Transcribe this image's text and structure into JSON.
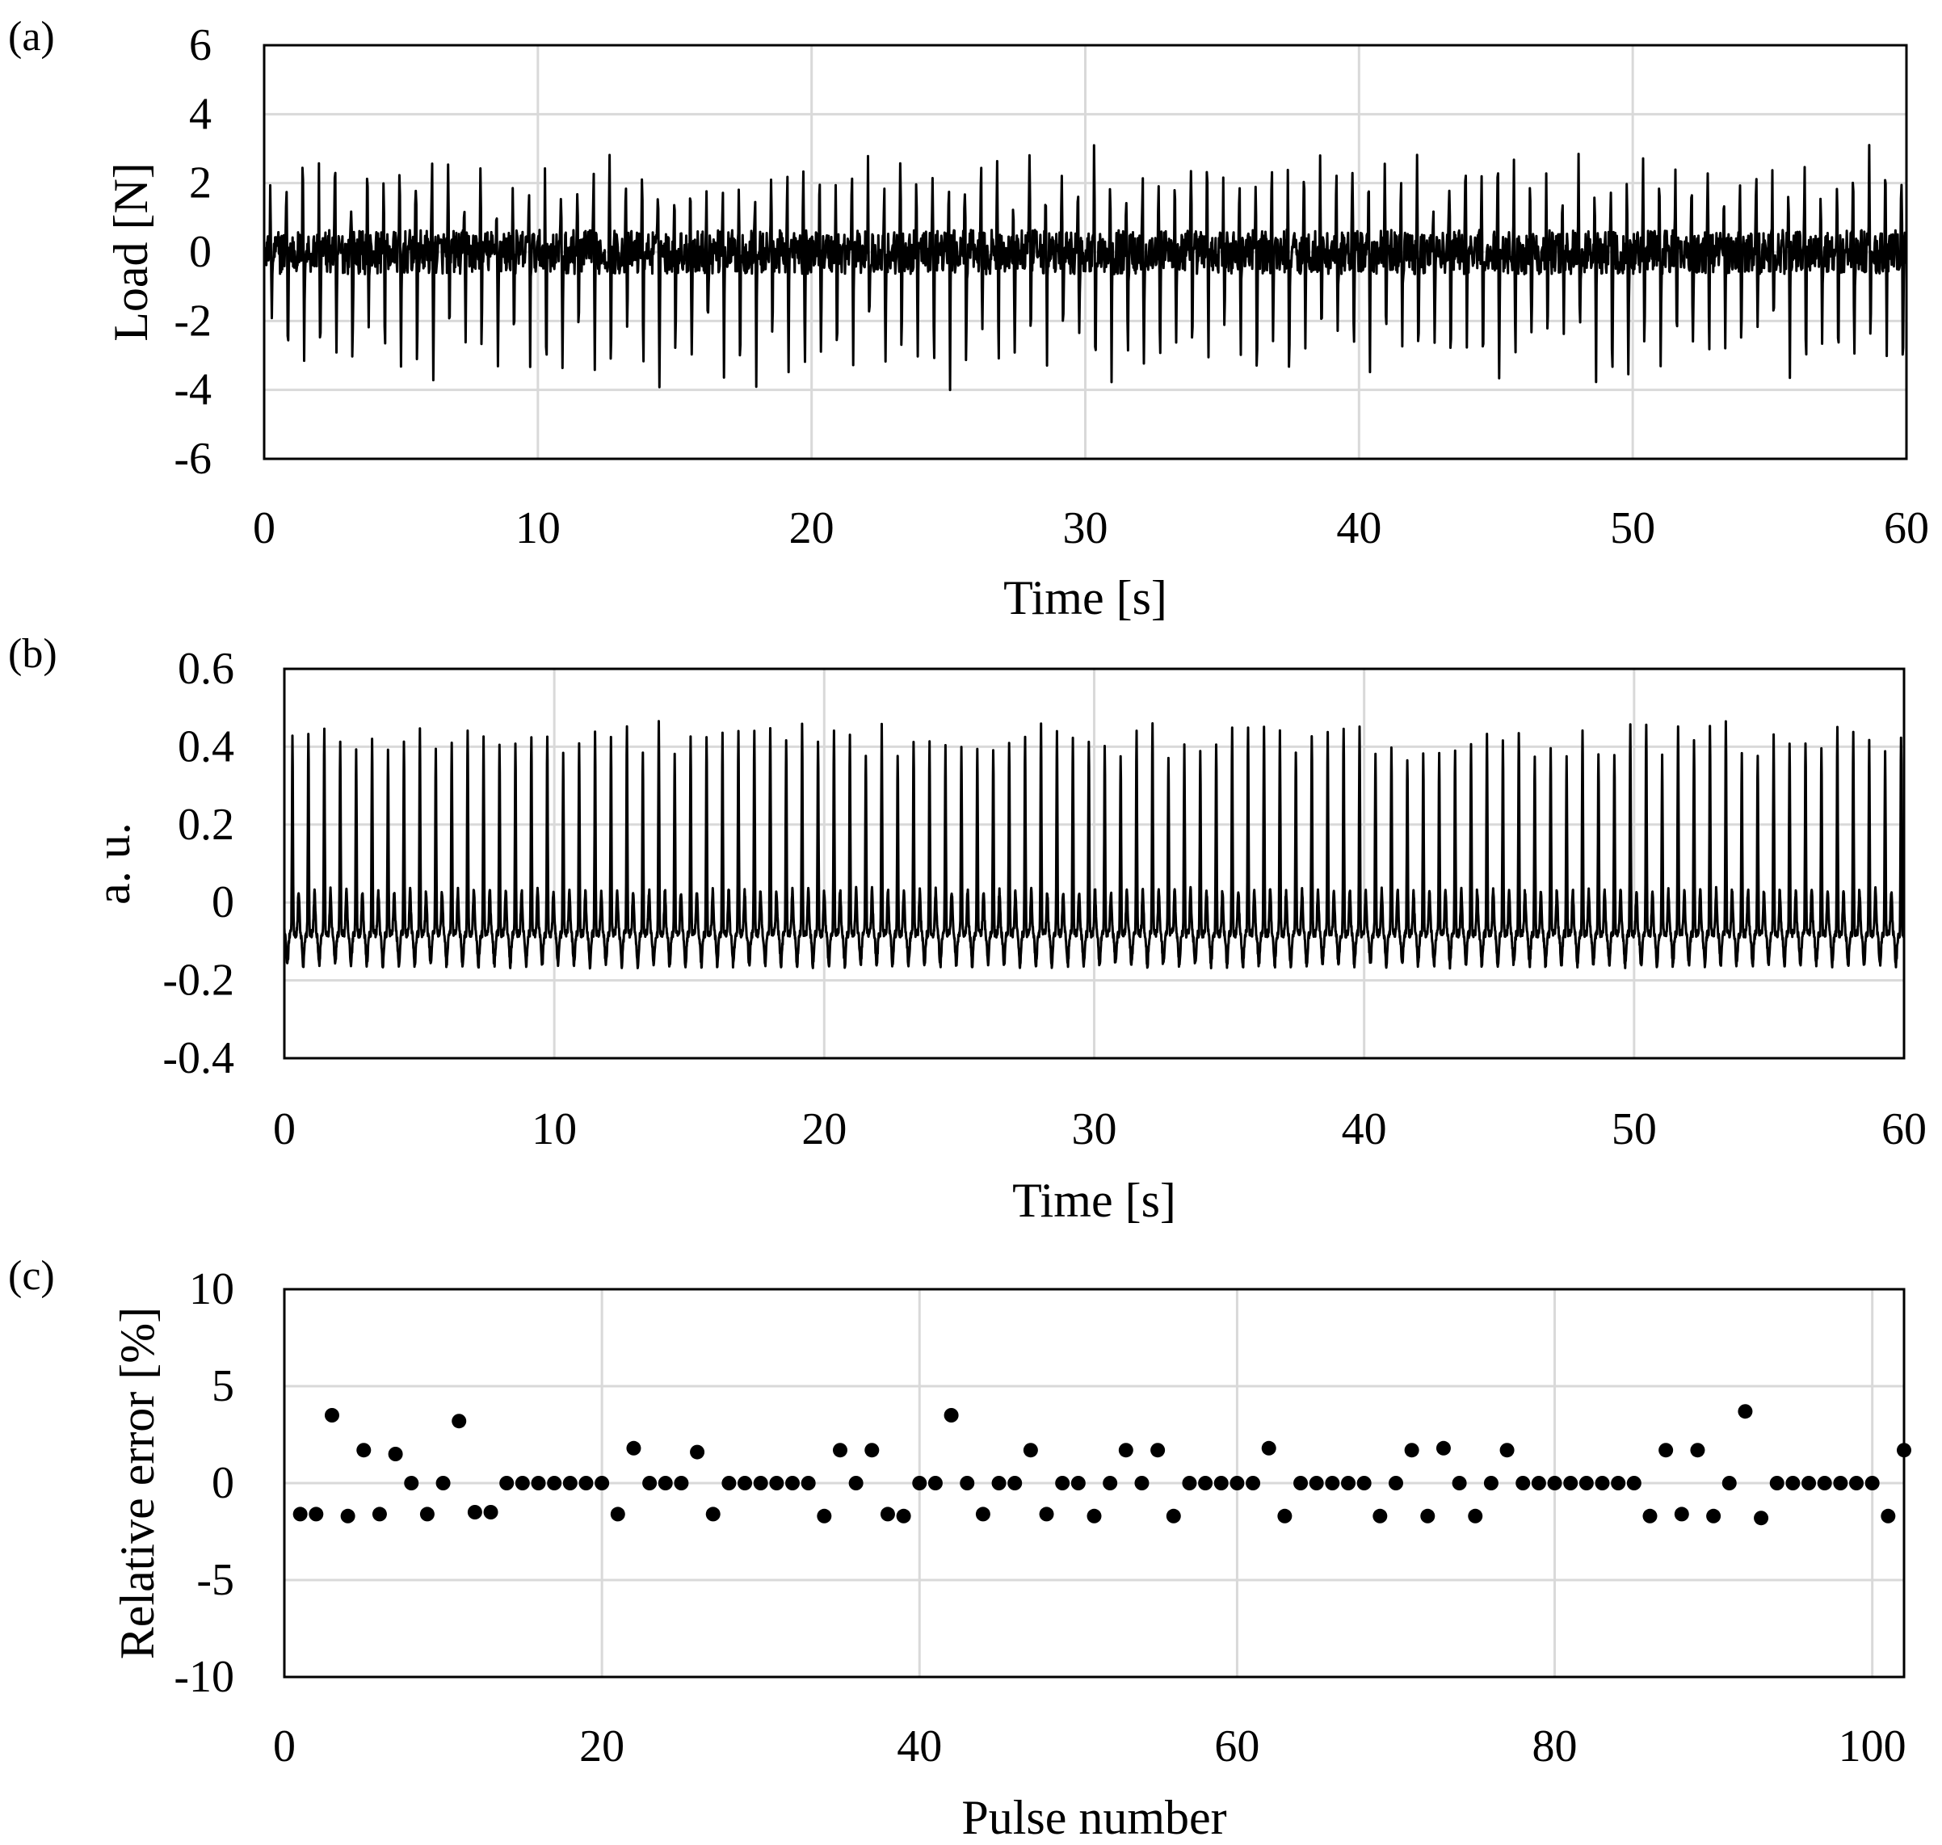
{
  "chart_data": [
    {
      "panel": "(a)",
      "type": "line",
      "xlabel": "Time [s]",
      "ylabel": "Load [N]",
      "xlim": [
        0,
        60
      ],
      "ylim": [
        -6,
        6
      ],
      "xticks": [
        0,
        10,
        20,
        30,
        40,
        50,
        60
      ],
      "yticks": [
        6,
        4,
        2,
        0,
        -2,
        -4,
        -6
      ],
      "grid": true,
      "series": [
        {
          "name": "Load",
          "color": "#000000",
          "signal": {
            "kind": "periodic-pulses",
            "pulse_count": 102,
            "pulse_period_s": 0.59,
            "first_pulse_s": 0.25,
            "baseline": 0.0,
            "peak_high": 2.0,
            "peak_low": -2.8,
            "noise_amplitude": 0.8
          }
        }
      ]
    },
    {
      "panel": "(b)",
      "type": "line",
      "xlabel": "Time [s]",
      "ylabel": "a. u.",
      "xlim": [
        0,
        60
      ],
      "ylim": [
        -0.4,
        0.6
      ],
      "xticks": [
        0,
        10,
        20,
        30,
        40,
        50,
        60
      ],
      "yticks": [
        0.6,
        0.4,
        0.2,
        0,
        -0.2,
        -0.4
      ],
      "grid": true,
      "series": [
        {
          "name": "a. u.",
          "color": "#000000",
          "signal": {
            "kind": "periodic-pulses",
            "pulse_count": 102,
            "pulse_period_s": 0.59,
            "first_pulse_s": 0.25,
            "baseline": -0.08,
            "peak_high": 0.42,
            "peak_low": -0.16,
            "secondary_peak": 0.03
          }
        }
      ]
    },
    {
      "panel": "(c)",
      "type": "scatter",
      "xlabel": "Pulse number",
      "ylabel": "Relative error [%]",
      "xlim": [
        0,
        102
      ],
      "ylim": [
        -10,
        10
      ],
      "xticks": [
        0,
        20,
        40,
        60,
        80,
        100
      ],
      "yticks": [
        10,
        5,
        0,
        -5,
        -10
      ],
      "grid": true,
      "series": [
        {
          "name": "Relative error",
          "color": "#000000",
          "x": [
            1,
            2,
            3,
            4,
            5,
            6,
            7,
            8,
            9,
            10,
            11,
            12,
            13,
            14,
            15,
            16,
            17,
            18,
            19,
            20,
            21,
            22,
            23,
            24,
            25,
            26,
            27,
            28,
            29,
            30,
            31,
            32,
            33,
            34,
            35,
            36,
            37,
            38,
            39,
            40,
            41,
            42,
            43,
            44,
            45,
            46,
            47,
            48,
            49,
            50,
            51,
            52,
            53,
            54,
            55,
            56,
            57,
            58,
            59,
            60,
            61,
            62,
            63,
            64,
            65,
            66,
            67,
            68,
            69,
            70,
            71,
            72,
            73,
            74,
            75,
            76,
            77,
            78,
            79,
            80,
            81,
            82,
            83,
            84,
            85,
            86,
            87,
            88,
            89,
            90,
            91,
            92,
            93,
            94,
            95,
            96,
            97,
            98,
            99,
            100,
            101,
            102
          ],
          "y": [
            -1.6,
            -1.6,
            3.5,
            -1.7,
            1.7,
            -1.6,
            1.5,
            0,
            -1.6,
            0,
            3.2,
            -1.5,
            -1.5,
            0,
            0,
            0,
            0,
            0,
            0,
            0,
            -1.6,
            1.8,
            0,
            0,
            0,
            1.6,
            -1.6,
            0,
            0,
            0,
            0,
            0,
            0,
            -1.7,
            1.7,
            0,
            1.7,
            -1.6,
            -1.7,
            0,
            0,
            3.5,
            0,
            -1.6,
            0,
            0,
            1.7,
            -1.6,
            0,
            0,
            -1.7,
            0,
            1.7,
            0,
            1.7,
            -1.7,
            0,
            0,
            0,
            0,
            0,
            1.8,
            -1.7,
            0,
            0,
            0,
            0,
            0,
            -1.7,
            0,
            1.7,
            -1.7,
            1.8,
            0,
            -1.7,
            0,
            1.7,
            0,
            0,
            0,
            0,
            0,
            0,
            0,
            0,
            -1.7,
            1.7,
            -1.6,
            1.7,
            -1.7,
            0,
            3.7,
            -1.8,
            0,
            0,
            0,
            0,
            0,
            0,
            0,
            -1.7,
            1.7
          ]
        }
      ]
    }
  ]
}
